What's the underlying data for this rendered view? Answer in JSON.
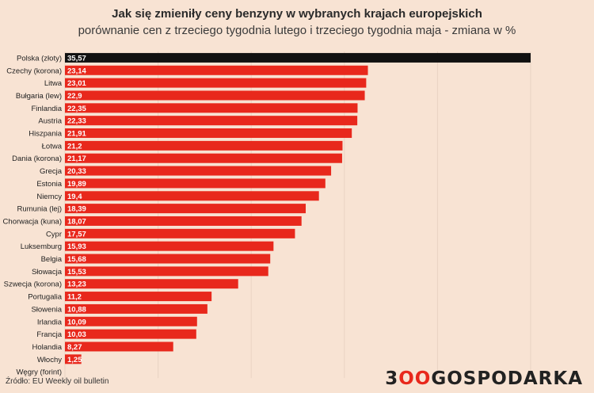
{
  "header": {
    "title": "Jak się zmieniły ceny benzyny w wybranych krajach europejskich",
    "subtitle": "porównanie cen z trzeciego tygodnia lutego i trzeciego tygodnia maja - zmiana w %"
  },
  "footer": {
    "source": "Źródło: EU Weekly oil bulletin",
    "logo_part1": "3",
    "logo_part2": "OO",
    "logo_part3": "GOSPODARKA"
  },
  "colors": {
    "highlight": "#111111",
    "bar": "#e8281c",
    "background": "#f8e3d3",
    "grid": "#e9d3c3"
  },
  "chart_data": {
    "type": "bar",
    "orientation": "horizontal",
    "title": "Jak się zmieniły ceny benzyny w wybranych krajach europejskich",
    "subtitle": "porównanie cen z trzeciego tygodnia lutego i trzeciego tygodnia maja - zmiana w %",
    "xlabel": "",
    "ylabel": "",
    "xlim": [
      0,
      35.57
    ],
    "categories": [
      "Polska (złoty)",
      "Czechy (korona)",
      "Litwa",
      "Bułgaria (lew)",
      "Finlandia",
      "Austria",
      "Hiszpania",
      "Łotwa",
      "Dania (korona)",
      "Grecja",
      "Estonia",
      "Niemcy",
      "Rumunia (lej)",
      "Chorwacja (kuna)",
      "Cypr",
      "Luksemburg",
      "Belgia",
      "Słowacja",
      "Szwecja (korona)",
      "Portugalia",
      "Słowenia",
      "Irlandia",
      "Francja",
      "Holandia",
      "Włochy",
      "Węgry (forint)"
    ],
    "values": [
      35.57,
      23.14,
      23.01,
      22.9,
      22.35,
      22.33,
      21.91,
      21.2,
      21.17,
      20.33,
      19.89,
      19.4,
      18.39,
      18.07,
      17.57,
      15.93,
      15.68,
      15.53,
      13.23,
      11.2,
      10.88,
      10.09,
      10.03,
      8.27,
      1.25,
      0
    ],
    "labels": [
      "35,57",
      "23,14",
      "23,01",
      "22,9",
      "22,35",
      "22,33",
      "21,91",
      "21,2",
      "21,17",
      "20,33",
      "19,89",
      "19,4",
      "18,39",
      "18,07",
      "17,57",
      "15,93",
      "15,68",
      "15,53",
      "13,23",
      "11,2",
      "10,88",
      "10,09",
      "10,03",
      "8,27",
      "1,25",
      ""
    ],
    "highlight_category": "Polska (złoty)",
    "grid": true
  }
}
